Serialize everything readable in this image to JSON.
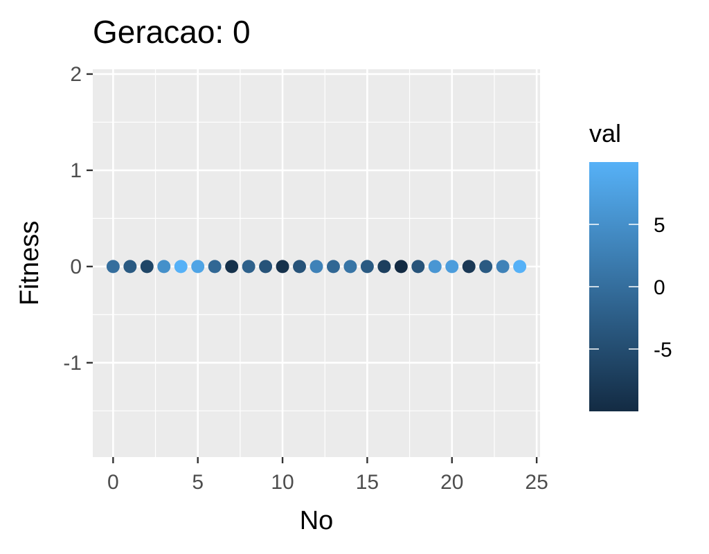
{
  "chart_data": {
    "type": "scatter",
    "title": "Geracao: 0",
    "xlabel": "No",
    "ylabel": "Fitness",
    "xlim": [
      -1.2,
      25.2
    ],
    "ylim": [
      -1.98,
      2.05
    ],
    "x_ticks": [
      0,
      5,
      10,
      15,
      20,
      25
    ],
    "x_tick_labels": [
      "0",
      "5",
      "10",
      "15",
      "20",
      "25"
    ],
    "y_ticks": [
      -1,
      0,
      1,
      2
    ],
    "y_tick_labels": [
      "-1",
      "0",
      "1",
      "2"
    ],
    "grid": true,
    "x": [
      0,
      1,
      2,
      3,
      4,
      5,
      6,
      7,
      8,
      9,
      10,
      11,
      12,
      13,
      14,
      15,
      16,
      17,
      18,
      19,
      20,
      21,
      22,
      23,
      24
    ],
    "y": [
      0,
      0,
      0,
      0,
      0,
      0,
      0,
      0,
      0,
      0,
      0,
      0,
      0,
      0,
      0,
      0,
      0,
      0,
      0,
      0,
      0,
      0,
      0,
      0,
      0
    ],
    "color_values": [
      0,
      -3,
      -6,
      5,
      10,
      8,
      -1,
      -9,
      -2,
      -4,
      -9,
      -4,
      3,
      -1,
      1,
      -3,
      -7,
      -10,
      -4,
      6,
      7,
      -8,
      -3,
      3,
      10
    ],
    "colorbar": {
      "title": "val",
      "range": [
        -10,
        10
      ],
      "ticks": [
        -5,
        0,
        5
      ],
      "tick_labels": [
        "-5",
        "0",
        "5"
      ],
      "low_color": "#132B43",
      "high_color": "#56B1F7"
    },
    "panel_background": "#EBEBEB",
    "grid_color": "#FFFFFF"
  }
}
